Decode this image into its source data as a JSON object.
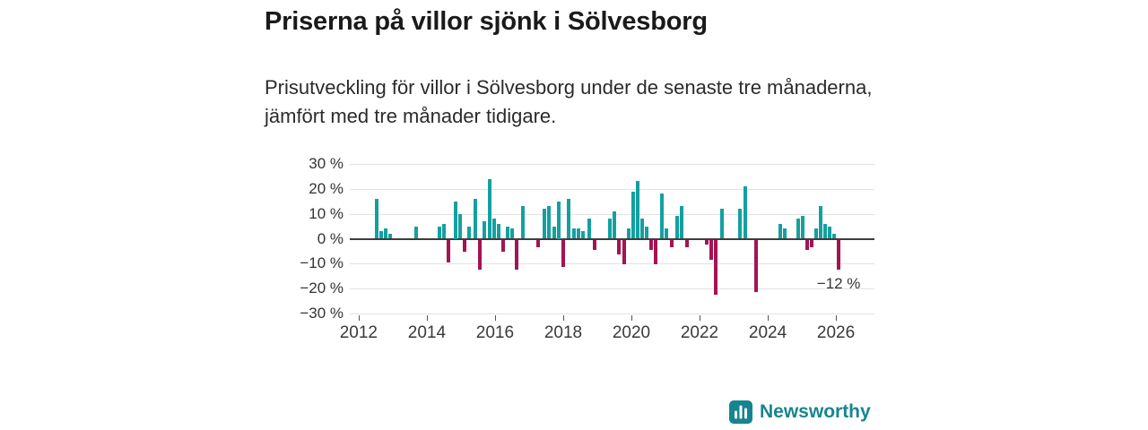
{
  "header": {
    "title": "Priserna på villor sjönk i Sölvesborg",
    "subtitle": "Prisutveckling för villor i Sölvesborg under de senaste tre månaderna, jämfört med tre månader tidigare."
  },
  "chart_data": {
    "type": "bar",
    "title": "Prisutveckling för villor i Sölvesborg under de senaste tre månaderna, jämfört med tre månader tidigare",
    "xlabel": "",
    "ylabel": "",
    "unit": "%",
    "grid": true,
    "legend": "none",
    "xlim": [
      2011.74,
      2027.13
    ],
    "ylim": [
      -30,
      30
    ],
    "colors": {
      "positive": "#14a0a0",
      "negative": "#a51352",
      "gridline": "#e2e2e2",
      "zeroline": "#3d3d3d"
    },
    "yticks": [
      {
        "label": "30 %",
        "value": 30
      },
      {
        "label": "20 %",
        "value": 20
      },
      {
        "label": "10 %",
        "value": 10
      },
      {
        "label": "0 %",
        "value": 0
      },
      {
        "label": "−10 %",
        "value": -10
      },
      {
        "label": "−20 %",
        "value": -20
      },
      {
        "label": "−30 %",
        "value": -30
      }
    ],
    "xticks": [
      {
        "label": "2012",
        "value": 2012
      },
      {
        "label": "2014",
        "value": 2014
      },
      {
        "label": "2016",
        "value": 2016
      },
      {
        "label": "2018",
        "value": 2018
      },
      {
        "label": "2020",
        "value": 2020
      },
      {
        "label": "2022",
        "value": 2022
      },
      {
        "label": "2024",
        "value": 2024
      },
      {
        "label": "2026",
        "value": 2026
      }
    ],
    "points": [
      [
        2012.53,
        16
      ],
      [
        2012.66,
        3
      ],
      [
        2012.79,
        4
      ],
      [
        2012.92,
        2
      ],
      [
        2013.68,
        5
      ],
      [
        2014.37,
        5
      ],
      [
        2014.5,
        6
      ],
      [
        2014.63,
        -9
      ],
      [
        2014.84,
        15
      ],
      [
        2014.97,
        10
      ],
      [
        2015.11,
        -5
      ],
      [
        2015.24,
        5
      ],
      [
        2015.42,
        16
      ],
      [
        2015.55,
        -12
      ],
      [
        2015.68,
        7
      ],
      [
        2015.84,
        24
      ],
      [
        2015.97,
        8
      ],
      [
        2016.11,
        6
      ],
      [
        2016.24,
        -5
      ],
      [
        2016.37,
        5
      ],
      [
        2016.5,
        4
      ],
      [
        2016.63,
        -12
      ],
      [
        2016.82,
        13
      ],
      [
        2017.26,
        -3
      ],
      [
        2017.45,
        12
      ],
      [
        2017.58,
        13
      ],
      [
        2017.74,
        5
      ],
      [
        2017.87,
        15
      ],
      [
        2018.0,
        -11
      ],
      [
        2018.16,
        16
      ],
      [
        2018.32,
        4
      ],
      [
        2018.45,
        4
      ],
      [
        2018.58,
        3
      ],
      [
        2018.76,
        8
      ],
      [
        2018.92,
        -4
      ],
      [
        2019.37,
        8
      ],
      [
        2019.5,
        11
      ],
      [
        2019.63,
        -6
      ],
      [
        2019.79,
        -10
      ],
      [
        2019.92,
        4
      ],
      [
        2020.05,
        19
      ],
      [
        2020.18,
        23
      ],
      [
        2020.32,
        8
      ],
      [
        2020.45,
        5
      ],
      [
        2020.58,
        -4
      ],
      [
        2020.71,
        -10
      ],
      [
        2020.89,
        18
      ],
      [
        2021.03,
        4
      ],
      [
        2021.18,
        -3
      ],
      [
        2021.34,
        9
      ],
      [
        2021.47,
        13
      ],
      [
        2021.63,
        -3
      ],
      [
        2022.21,
        -2
      ],
      [
        2022.34,
        -8
      ],
      [
        2022.47,
        -22
      ],
      [
        2022.66,
        12
      ],
      [
        2023.18,
        12
      ],
      [
        2023.34,
        21
      ],
      [
        2023.66,
        -21
      ],
      [
        2024.37,
        6
      ],
      [
        2024.5,
        4
      ],
      [
        2024.89,
        8
      ],
      [
        2025.03,
        9
      ],
      [
        2025.16,
        -4
      ],
      [
        2025.29,
        -3
      ],
      [
        2025.42,
        4
      ],
      [
        2025.55,
        13
      ],
      [
        2025.68,
        6
      ],
      [
        2025.82,
        5
      ],
      [
        2025.95,
        2
      ],
      [
        2026.08,
        -12
      ]
    ],
    "annotation": {
      "text": "−12 %",
      "t": 2026.08,
      "v": -12
    }
  },
  "footer": {
    "brand": "Newsworthy",
    "brand_color": "#17858f"
  }
}
